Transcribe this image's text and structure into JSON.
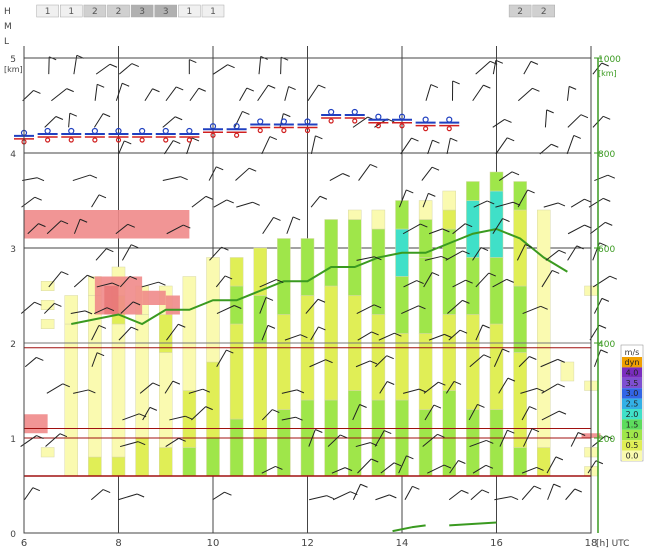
{
  "cloud_levels": {
    "labels": [
      "H",
      "M",
      "L"
    ],
    "groups": [
      {
        "start": 6.5,
        "values": [
          "1",
          "1",
          "2",
          "2",
          "3",
          "3",
          "1",
          "1"
        ],
        "colors": [
          "#f0f0f0",
          "#f0f0f0",
          "#d0d0d0",
          "#d0d0d0",
          "#b0b0b0",
          "#b0b0b0",
          "#f0f0f0",
          "#f0f0f0"
        ]
      },
      {
        "start": 16.5,
        "values": [
          "2",
          "2"
        ],
        "colors": [
          "#d0d0d0",
          "#d0d0d0"
        ]
      }
    ]
  },
  "legend": {
    "title": "m/s",
    "items": [
      {
        "label": "dyn",
        "color": "#f0a000"
      },
      {
        "label": "4.0",
        "color": "#7a2dbf"
      },
      {
        "label": "3.5",
        "color": "#7e4fd1"
      },
      {
        "label": "3.0",
        "color": "#3366e6"
      },
      {
        "label": "2.5",
        "color": "#33b0e6"
      },
      {
        "label": "2.0",
        "color": "#40e0c8"
      },
      {
        "label": "1.5",
        "color": "#5ddc5d"
      },
      {
        "label": "1.0",
        "color": "#9fe64a"
      },
      {
        "label": "0.5",
        "color": "#e0ee56"
      },
      {
        "label": "0.0",
        "color": "#fafab0"
      }
    ]
  },
  "chart_data": {
    "type": "bar",
    "xlabel": "[h] UTC",
    "x_ticks": [
      "6",
      "8",
      "10",
      "12",
      "14",
      "16",
      "18"
    ],
    "xlim": [
      6,
      18
    ],
    "ylabel_left": "[km]",
    "ylim_left": [
      0,
      5
    ],
    "y_ticks_left": [
      "0",
      "1",
      "2",
      "3",
      "4",
      "5"
    ],
    "ylabel_right": "[km]",
    "ylim_right": [
      0,
      1000
    ],
    "y_ticks_right": [
      "200",
      "400",
      "600",
      "800",
      "1000"
    ],
    "thermal_columns": [
      {
        "x": 6.5,
        "cells": [
          [
            0.8,
            0.9,
            "#fafab0"
          ],
          [
            2.15,
            2.25,
            "#fafab0"
          ],
          [
            2.35,
            2.45,
            "#fafab0"
          ],
          [
            2.55,
            2.65,
            "#fafab0"
          ]
        ]
      },
      {
        "x": 7.0,
        "cells": [
          [
            0.6,
            2.2,
            "#fafab0"
          ],
          [
            2.2,
            2.5,
            "#fafab0"
          ]
        ]
      },
      {
        "x": 7.5,
        "cells": [
          [
            0.6,
            0.8,
            "#e0ee56"
          ],
          [
            0.8,
            2.5,
            "#fafab0"
          ],
          [
            2.5,
            2.7,
            "#fafab0"
          ]
        ]
      },
      {
        "x": 8.0,
        "cells": [
          [
            0.6,
            0.8,
            "#e0ee56"
          ],
          [
            0.8,
            2.2,
            "#fafab0"
          ],
          [
            2.2,
            2.5,
            "#e0ee56"
          ],
          [
            2.5,
            2.8,
            "#fafab0"
          ]
        ]
      },
      {
        "x": 8.5,
        "cells": [
          [
            0.6,
            1.0,
            "#e0ee56"
          ],
          [
            1.0,
            2.3,
            "#fafab0"
          ],
          [
            2.3,
            2.6,
            "#fafab0"
          ]
        ]
      },
      {
        "x": 9.0,
        "cells": [
          [
            0.6,
            0.9,
            "#e0ee56"
          ],
          [
            0.9,
            1.9,
            "#fafab0"
          ],
          [
            1.9,
            2.3,
            "#e0ee56"
          ],
          [
            2.3,
            2.6,
            "#fafab0"
          ]
        ]
      },
      {
        "x": 9.5,
        "cells": [
          [
            0.6,
            0.9,
            "#9fe64a"
          ],
          [
            0.9,
            1.5,
            "#e0ee56"
          ],
          [
            1.5,
            2.7,
            "#fafab0"
          ]
        ]
      },
      {
        "x": 10.0,
        "cells": [
          [
            0.6,
            1.0,
            "#9fe64a"
          ],
          [
            1.0,
            1.8,
            "#e0ee56"
          ],
          [
            1.8,
            2.9,
            "#fafab0"
          ]
        ]
      },
      {
        "x": 10.5,
        "cells": [
          [
            0.6,
            1.2,
            "#9fe64a"
          ],
          [
            1.2,
            2.2,
            "#e0ee56"
          ],
          [
            2.2,
            2.6,
            "#9fe64a"
          ],
          [
            2.6,
            2.9,
            "#e0ee56"
          ]
        ]
      },
      {
        "x": 11.0,
        "cells": [
          [
            0.6,
            1.0,
            "#9fe64a"
          ],
          [
            1.0,
            2.0,
            "#e0ee56"
          ],
          [
            2.0,
            2.5,
            "#9fe64a"
          ],
          [
            2.5,
            3.0,
            "#e0ee56"
          ]
        ]
      },
      {
        "x": 11.5,
        "cells": [
          [
            0.6,
            1.3,
            "#9fe64a"
          ],
          [
            1.3,
            2.3,
            "#e0ee56"
          ],
          [
            2.3,
            3.1,
            "#9fe64a"
          ]
        ]
      },
      {
        "x": 12.0,
        "cells": [
          [
            0.6,
            1.4,
            "#9fe64a"
          ],
          [
            1.4,
            2.5,
            "#e0ee56"
          ],
          [
            2.5,
            3.1,
            "#9fe64a"
          ]
        ]
      },
      {
        "x": 12.5,
        "cells": [
          [
            0.6,
            1.4,
            "#9fe64a"
          ],
          [
            1.4,
            2.6,
            "#e0ee56"
          ],
          [
            2.6,
            3.3,
            "#9fe64a"
          ]
        ]
      },
      {
        "x": 13.0,
        "cells": [
          [
            0.6,
            1.5,
            "#9fe64a"
          ],
          [
            1.5,
            2.5,
            "#e0ee56"
          ],
          [
            2.5,
            3.3,
            "#9fe64a"
          ],
          [
            3.3,
            3.4,
            "#fafab0"
          ]
        ]
      },
      {
        "x": 13.5,
        "cells": [
          [
            0.6,
            1.4,
            "#9fe64a"
          ],
          [
            1.4,
            2.3,
            "#e0ee56"
          ],
          [
            2.3,
            3.2,
            "#9fe64a"
          ],
          [
            3.2,
            3.4,
            "#fafab0"
          ]
        ]
      },
      {
        "x": 14.0,
        "cells": [
          [
            0.6,
            1.4,
            "#9fe64a"
          ],
          [
            1.4,
            2.1,
            "#e0ee56"
          ],
          [
            2.1,
            2.7,
            "#9fe64a"
          ],
          [
            2.7,
            3.2,
            "#40e0c8"
          ],
          [
            3.2,
            3.5,
            "#9fe64a"
          ]
        ]
      },
      {
        "x": 14.5,
        "cells": [
          [
            0.6,
            1.3,
            "#9fe64a"
          ],
          [
            1.3,
            2.1,
            "#e0ee56"
          ],
          [
            2.1,
            2.9,
            "#9fe64a"
          ],
          [
            2.9,
            3.3,
            "#9fe64a"
          ],
          [
            3.3,
            3.5,
            "#fafab0"
          ]
        ]
      },
      {
        "x": 15.0,
        "cells": [
          [
            0.6,
            1.5,
            "#9fe64a"
          ],
          [
            1.5,
            2.3,
            "#e0ee56"
          ],
          [
            2.3,
            3.2,
            "#9fe64a"
          ],
          [
            3.2,
            3.4,
            "#e0ee56"
          ],
          [
            3.4,
            3.6,
            "#fafab0"
          ]
        ]
      },
      {
        "x": 15.5,
        "cells": [
          [
            0.6,
            1.3,
            "#9fe64a"
          ],
          [
            1.3,
            2.3,
            "#e0ee56"
          ],
          [
            2.3,
            2.9,
            "#9fe64a"
          ],
          [
            2.9,
            3.5,
            "#40e0c8"
          ],
          [
            3.5,
            3.7,
            "#9fe64a"
          ]
        ]
      },
      {
        "x": 16.0,
        "cells": [
          [
            0.6,
            1.3,
            "#9fe64a"
          ],
          [
            1.3,
            2.2,
            "#e0ee56"
          ],
          [
            2.2,
            2.9,
            "#9fe64a"
          ],
          [
            2.9,
            3.6,
            "#40e0c8"
          ],
          [
            3.6,
            3.8,
            "#9fe64a"
          ]
        ]
      },
      {
        "x": 16.5,
        "cells": [
          [
            0.6,
            0.9,
            "#9fe64a"
          ],
          [
            0.9,
            1.9,
            "#e0ee56"
          ],
          [
            1.9,
            2.6,
            "#9fe64a"
          ],
          [
            2.6,
            3.4,
            "#e0ee56"
          ],
          [
            3.4,
            3.7,
            "#9fe64a"
          ]
        ]
      },
      {
        "x": 17.0,
        "cells": [
          [
            0.6,
            0.9,
            "#e0ee56"
          ],
          [
            0.9,
            2.0,
            "#fafab0"
          ],
          [
            2.0,
            3.4,
            "#fafab0"
          ]
        ]
      },
      {
        "x": 17.5,
        "cells": [
          [
            1.6,
            1.8,
            "#fafab0"
          ]
        ]
      },
      {
        "x": 18.0,
        "cells": [
          [
            0.6,
            0.7,
            "#fafab0"
          ],
          [
            0.8,
            0.9,
            "#fafab0"
          ],
          [
            1.5,
            1.6,
            "#fafab0"
          ],
          [
            2.5,
            2.6,
            "#fafab0"
          ]
        ]
      }
    ],
    "cloud_blocks": [
      {
        "x": [
          6.0,
          9.5
        ],
        "y": [
          3.1,
          3.4
        ],
        "color": "#f08a8a"
      },
      {
        "x": [
          7.5,
          8.5
        ],
        "y": [
          2.3,
          2.7
        ],
        "color": "#f08a8a"
      },
      {
        "x": [
          7.7,
          8.0
        ],
        "y": [
          2.3,
          2.6
        ],
        "color": "#e87878"
      },
      {
        "x": [
          8.5,
          9.0
        ],
        "y": [
          2.4,
          2.55
        ],
        "color": "#f08a8a"
      },
      {
        "x": [
          9.0,
          9.3
        ],
        "y": [
          2.3,
          2.5
        ],
        "color": "#f08a8a"
      },
      {
        "x": [
          6.0,
          6.5
        ],
        "y": [
          1.05,
          1.25
        ],
        "color": "#f08a8a"
      },
      {
        "x": [
          17.8,
          18.2
        ],
        "y": [
          1.0,
          1.05
        ],
        "color": "#f08a8a"
      }
    ],
    "ref_lines": [
      {
        "y": 0.6,
        "color": "#a01010",
        "width": 1.5
      },
      {
        "y": 1.0,
        "color": "#a01010",
        "width": 1.0
      },
      {
        "y": 1.1,
        "color": "#a01010",
        "width": 1.0
      },
      {
        "y": 1.95,
        "color": "#a01010",
        "width": 1.0
      },
      {
        "y": 2.0,
        "color": "#777777",
        "width": 1.0
      }
    ],
    "ceiling_line": {
      "name": "",
      "color": "#3a9a20",
      "points": [
        [
          7.0,
          2.2
        ],
        [
          7.5,
          2.25
        ],
        [
          8.0,
          2.3
        ],
        [
          8.5,
          2.2
        ],
        [
          9.0,
          2.35
        ],
        [
          9.5,
          2.35
        ],
        [
          10.0,
          2.45
        ],
        [
          10.5,
          2.45
        ],
        [
          11.0,
          2.55
        ],
        [
          11.5,
          2.65
        ],
        [
          12.0,
          2.65
        ],
        [
          12.5,
          2.8
        ],
        [
          13.0,
          2.8
        ],
        [
          13.5,
          2.9
        ],
        [
          14.0,
          2.95
        ],
        [
          14.5,
          2.95
        ],
        [
          15.0,
          3.05
        ],
        [
          15.5,
          3.15
        ],
        [
          16.0,
          3.2
        ],
        [
          16.5,
          3.1
        ],
        [
          17.0,
          2.9
        ],
        [
          17.5,
          2.75
        ]
      ]
    },
    "ground_segments": [
      {
        "x": [
          13.8,
          14.2
        ],
        "y": [
          0.02,
          0.06
        ]
      },
      {
        "x": [
          14.2,
          14.5
        ],
        "y": [
          0.06,
          0.08
        ]
      },
      {
        "x": [
          15.0,
          16.0
        ],
        "y": [
          0.08,
          0.11
        ]
      }
    ],
    "level_markers": [
      {
        "x": 6.0,
        "y": 4.18
      },
      {
        "x": 6.5,
        "y": 4.2
      },
      {
        "x": 7.0,
        "y": 4.2
      },
      {
        "x": 7.5,
        "y": 4.2
      },
      {
        "x": 8.0,
        "y": 4.2
      },
      {
        "x": 8.5,
        "y": 4.2
      },
      {
        "x": 9.0,
        "y": 4.2
      },
      {
        "x": 9.5,
        "y": 4.2
      },
      {
        "x": 10.0,
        "y": 4.25
      },
      {
        "x": 10.5,
        "y": 4.25
      },
      {
        "x": 11.0,
        "y": 4.3
      },
      {
        "x": 11.5,
        "y": 4.3
      },
      {
        "x": 12.0,
        "y": 4.3
      },
      {
        "x": 12.5,
        "y": 4.4
      },
      {
        "x": 13.0,
        "y": 4.4
      },
      {
        "x": 13.5,
        "y": 4.35
      },
      {
        "x": 14.0,
        "y": 4.35
      },
      {
        "x": 14.5,
        "y": 4.32
      },
      {
        "x": 15.0,
        "y": 4.32
      }
    ]
  }
}
